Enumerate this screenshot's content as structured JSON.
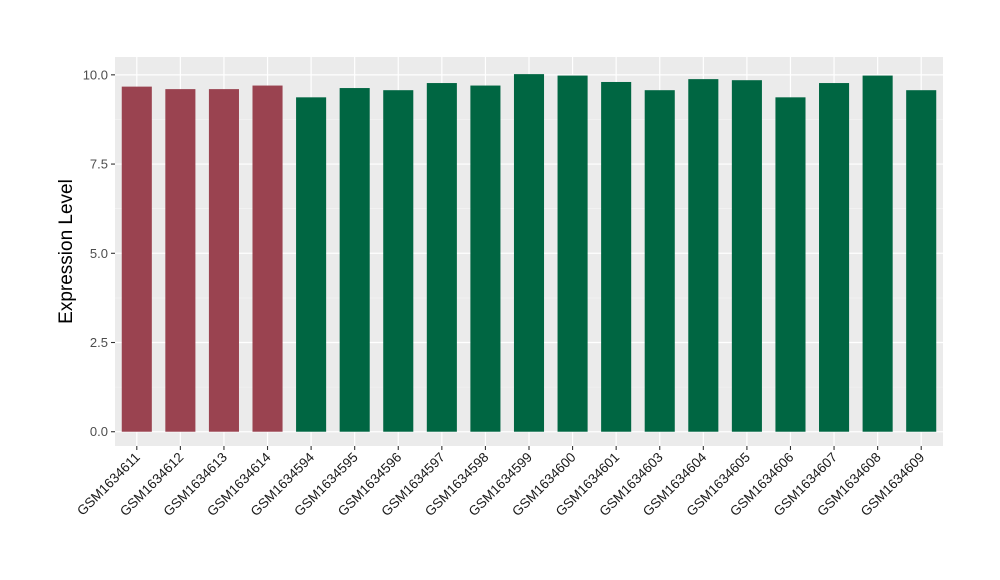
{
  "chart_data": {
    "type": "bar",
    "title": "",
    "xlabel": "",
    "ylabel": "Expression Level",
    "ylim": [
      -0.4,
      10.5
    ],
    "yticks": [
      0.0,
      2.5,
      5.0,
      7.5,
      10.0
    ],
    "ytick_labels": [
      "0.0",
      "2.5",
      "5.0",
      "7.5",
      "10.0"
    ],
    "grid": true,
    "legend": "none",
    "background": "#ebebeb",
    "categories": [
      "GSM1634611",
      "GSM1634612",
      "GSM1634613",
      "GSM1634614",
      "GSM1634594",
      "GSM1634595",
      "GSM1634596",
      "GSM1634597",
      "GSM1634598",
      "GSM1634599",
      "GSM1634600",
      "GSM1634601",
      "GSM1634603",
      "GSM1634604",
      "GSM1634605",
      "GSM1634606",
      "GSM1634607",
      "GSM1634608",
      "GSM1634609"
    ],
    "values": [
      9.67,
      9.6,
      9.6,
      9.7,
      9.37,
      9.63,
      9.57,
      9.77,
      9.7,
      10.02,
      9.98,
      9.8,
      9.57,
      9.88,
      9.85,
      9.37,
      9.77,
      9.98,
      9.57
    ],
    "group_of_bar": [
      0,
      0,
      0,
      0,
      1,
      1,
      1,
      1,
      1,
      1,
      1,
      1,
      1,
      1,
      1,
      1,
      1,
      1,
      1
    ],
    "group_colors": [
      "#9a4350",
      "#006642"
    ]
  }
}
